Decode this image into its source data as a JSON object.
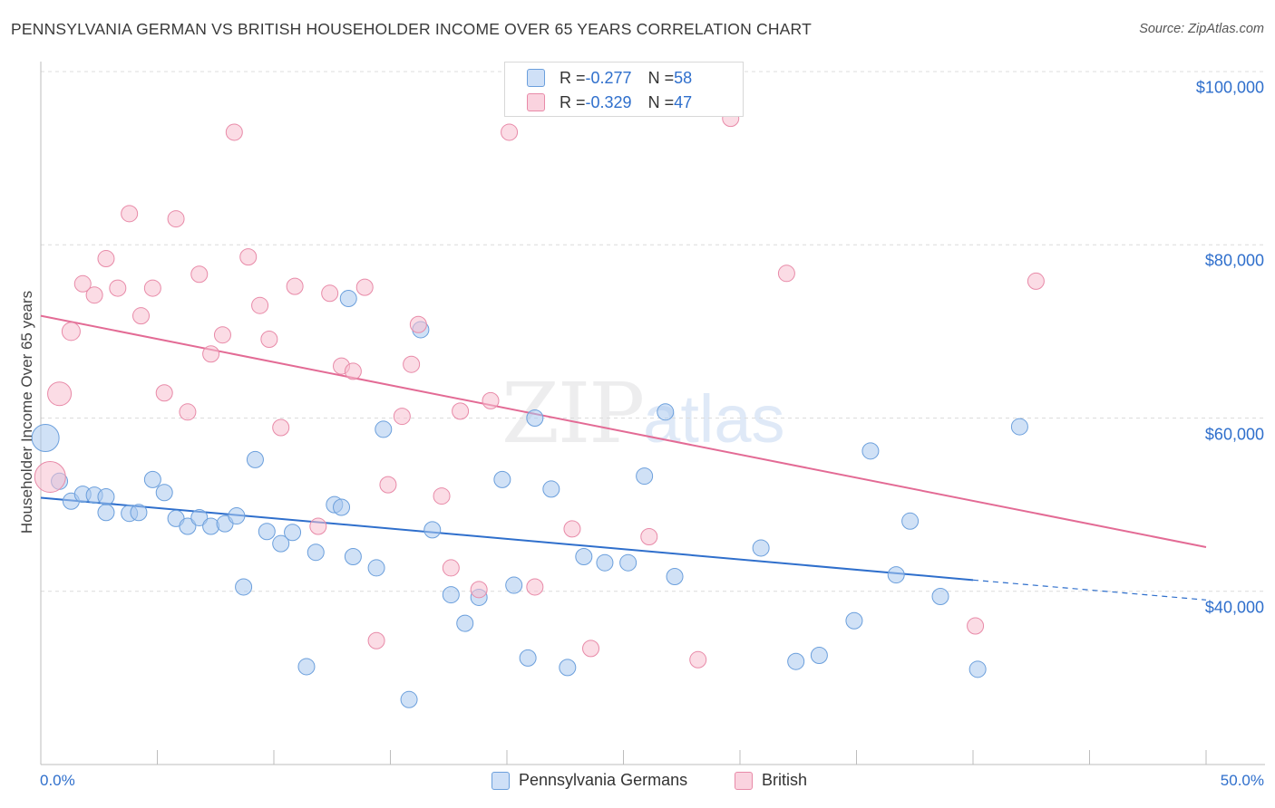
{
  "header": {
    "title": "PENNSYLVANIA GERMAN VS BRITISH HOUSEHOLDER INCOME OVER 65 YEARS CORRELATION CHART",
    "source": "Source: ZipAtlas.com"
  },
  "watermark": {
    "zip": "ZIP",
    "atlas": "atlas"
  },
  "stats_legend": [
    {
      "r_label": "R = ",
      "r_value": "-0.277",
      "n_label": "N = ",
      "n_value": "58",
      "color": "#a9c8ef",
      "border": "#6b9fdc"
    },
    {
      "r_label": "R = ",
      "r_value": "-0.329",
      "n_label": "N = ",
      "n_value": "47",
      "color": "#f7bfd0",
      "border": "#e88aa8"
    }
  ],
  "chart_data": {
    "type": "scatter",
    "title": "PENNSYLVANIA GERMAN VS BRITISH HOUSEHOLDER INCOME OVER 65 YEARS CORRELATION CHART",
    "xlabel": "",
    "ylabel": "Householder Income Over 65 years",
    "xlim": [
      0,
      50
    ],
    "ylim": [
      20000,
      105000
    ],
    "x_tick_labels": {
      "min": "0.0%",
      "max": "50.0%"
    },
    "y_ticks": [
      {
        "value": 100000,
        "label": "$100,000"
      },
      {
        "value": 80000,
        "label": "$80,000"
      },
      {
        "value": 60000,
        "label": "$60,000"
      },
      {
        "value": 40000,
        "label": "$40,000"
      }
    ],
    "grid": true,
    "legend_position": "bottom",
    "series": [
      {
        "name": "Pennsylvania Germans",
        "color": "#6b9fdc",
        "fill": "#a9c8ef",
        "trend": {
          "x0": 0,
          "y0": 50800,
          "x1": 40,
          "y1": 41300,
          "dash_to_x": 50,
          "dash_to_y": 39000,
          "color": "#2f6fcc"
        },
        "points": [
          [
            0.2,
            57700,
            15
          ],
          [
            0.8,
            52700,
            9
          ],
          [
            1.3,
            50400,
            9
          ],
          [
            1.8,
            51200,
            9
          ],
          [
            2.3,
            51100,
            9
          ],
          [
            2.8,
            50900,
            9
          ],
          [
            2.8,
            49100,
            9
          ],
          [
            3.8,
            49000,
            9
          ],
          [
            4.2,
            49100,
            9
          ],
          [
            4.8,
            52900,
            9
          ],
          [
            5.3,
            51400,
            9
          ],
          [
            5.8,
            48400,
            9
          ],
          [
            6.3,
            47500,
            9
          ],
          [
            6.8,
            48500,
            9
          ],
          [
            7.3,
            47500,
            9
          ],
          [
            7.9,
            47800,
            9
          ],
          [
            8.4,
            48700,
            9
          ],
          [
            8.7,
            40500,
            9
          ],
          [
            9.2,
            55200,
            9
          ],
          [
            9.7,
            46900,
            9
          ],
          [
            10.3,
            45500,
            9
          ],
          [
            10.8,
            46800,
            9
          ],
          [
            11.4,
            31300,
            9
          ],
          [
            11.8,
            44500,
            9
          ],
          [
            12.6,
            50000,
            9
          ],
          [
            12.9,
            49700,
            9
          ],
          [
            13.2,
            73800,
            9
          ],
          [
            13.4,
            44000,
            9
          ],
          [
            14.4,
            42700,
            9
          ],
          [
            14.7,
            58700,
            9
          ],
          [
            15.8,
            27500,
            9
          ],
          [
            16.3,
            70200,
            9
          ],
          [
            16.8,
            47100,
            9
          ],
          [
            17.6,
            39600,
            9
          ],
          [
            18.2,
            36300,
            9
          ],
          [
            18.8,
            39300,
            9
          ],
          [
            19.8,
            52900,
            9
          ],
          [
            20.3,
            40700,
            9
          ],
          [
            20.9,
            32300,
            9
          ],
          [
            21.2,
            60000,
            9
          ],
          [
            21.9,
            51800,
            9
          ],
          [
            22.6,
            31200,
            9
          ],
          [
            23.3,
            44000,
            9
          ],
          [
            24.2,
            43300,
            9
          ],
          [
            25.2,
            43300,
            9
          ],
          [
            25.9,
            53300,
            9
          ],
          [
            26.8,
            60700,
            9
          ],
          [
            27.2,
            41700,
            9
          ],
          [
            30.9,
            45000,
            9
          ],
          [
            32.4,
            31900,
            9
          ],
          [
            33.4,
            32600,
            9
          ],
          [
            34.9,
            36600,
            9
          ],
          [
            35.6,
            56200,
            9
          ],
          [
            36.7,
            41900,
            9
          ],
          [
            37.3,
            48100,
            9
          ],
          [
            38.6,
            39400,
            9
          ],
          [
            40.2,
            31000,
            9
          ],
          [
            42.0,
            59000,
            9
          ]
        ]
      },
      {
        "name": "British",
        "color": "#e88aa8",
        "fill": "#f7bfd0",
        "trend": {
          "x0": 0,
          "y0": 71800,
          "x1": 50,
          "y1": 45100,
          "color": "#e36b95"
        },
        "points": [
          [
            0.4,
            53200,
            17
          ],
          [
            0.8,
            62800,
            13
          ],
          [
            1.3,
            70000,
            10
          ],
          [
            1.8,
            75500,
            9
          ],
          [
            2.3,
            74200,
            9
          ],
          [
            2.8,
            78400,
            9
          ],
          [
            3.3,
            75000,
            9
          ],
          [
            3.8,
            83600,
            9
          ],
          [
            4.3,
            71800,
            9
          ],
          [
            4.8,
            75000,
            9
          ],
          [
            5.3,
            62900,
            9
          ],
          [
            5.8,
            83000,
            9
          ],
          [
            6.3,
            60700,
            9
          ],
          [
            6.8,
            76600,
            9
          ],
          [
            7.3,
            67400,
            9
          ],
          [
            7.8,
            69600,
            9
          ],
          [
            8.3,
            93000,
            9
          ],
          [
            8.9,
            78600,
            9
          ],
          [
            9.4,
            73000,
            9
          ],
          [
            9.8,
            69100,
            9
          ],
          [
            10.3,
            58900,
            9
          ],
          [
            10.9,
            75200,
            9
          ],
          [
            11.9,
            47500,
            9
          ],
          [
            12.4,
            74400,
            9
          ],
          [
            12.9,
            66000,
            9
          ],
          [
            13.4,
            65400,
            9
          ],
          [
            13.9,
            75100,
            9
          ],
          [
            14.4,
            34300,
            9
          ],
          [
            14.9,
            52300,
            9
          ],
          [
            15.5,
            60200,
            9
          ],
          [
            15.9,
            66200,
            9
          ],
          [
            16.2,
            70800,
            9
          ],
          [
            17.2,
            51000,
            9
          ],
          [
            17.6,
            42700,
            9
          ],
          [
            18.0,
            60800,
            9
          ],
          [
            18.8,
            40200,
            9
          ],
          [
            19.3,
            62000,
            9
          ],
          [
            20.1,
            93000,
            9
          ],
          [
            21.2,
            40500,
            9
          ],
          [
            22.8,
            47200,
            9
          ],
          [
            23.6,
            33400,
            9
          ],
          [
            26.1,
            46300,
            9
          ],
          [
            28.2,
            32100,
            9
          ],
          [
            29.6,
            94600,
            9
          ],
          [
            32.0,
            76700,
            9
          ],
          [
            40.1,
            36000,
            9
          ],
          [
            42.7,
            75800,
            9
          ]
        ]
      }
    ]
  }
}
